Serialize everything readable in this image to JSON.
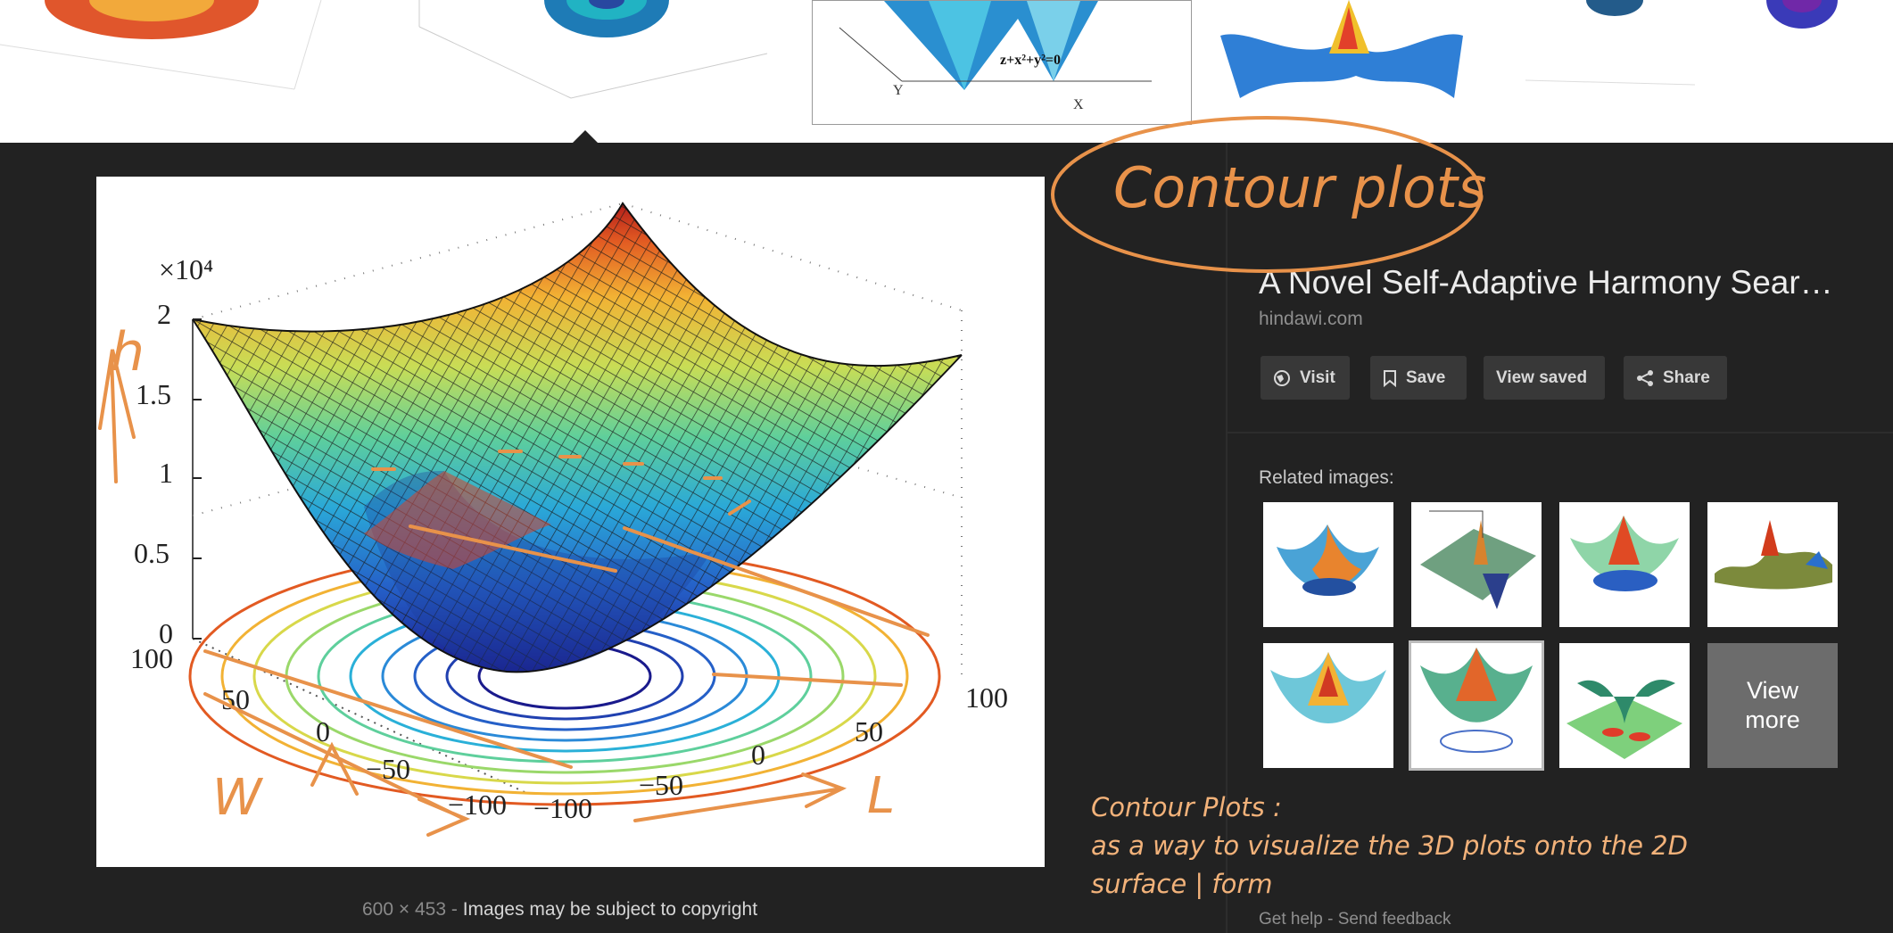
{
  "strip": {
    "thumb3_formula": "z+x²+y²=0",
    "thumb3_axis_y": "Y",
    "thumb3_axis_x": "X"
  },
  "preview": {
    "chart": {
      "exponent_label": "×10⁴",
      "z_ticks": [
        "2",
        "1.5",
        "1",
        "0.5",
        "0"
      ],
      "w_ticks": [
        "100",
        "50",
        "0",
        "−50",
        "−100"
      ],
      "l_ticks": [
        "−100",
        "−50",
        "0",
        "50",
        "100"
      ]
    },
    "dimensions": "600 × 453",
    "separator": "-",
    "copyright": "Images may be subject to copyright"
  },
  "chart_data": {
    "type": "surface",
    "title": "",
    "zlabel_multiplier": "×10⁴",
    "zlim": [
      0,
      2
    ],
    "z_ticks": [
      0,
      0.5,
      1,
      1.5,
      2
    ],
    "w_range": [
      -100,
      100
    ],
    "l_range": [
      -100,
      100
    ],
    "w_ticks": [
      -100,
      -50,
      0,
      50,
      100
    ],
    "l_ticks": [
      -100,
      -50,
      0,
      50,
      100
    ],
    "surface": "paraboloid z = w² + l² (bowl), colormap jet, contour rings projected at z=0",
    "contour_levels": 10
  },
  "result": {
    "title": "A Novel Self-Adaptive Harmony Sear…",
    "domain": "hindawi.com",
    "actions": {
      "visit": "Visit",
      "save": "Save",
      "view_saved": "View saved",
      "share": "Share"
    },
    "related_label": "Related images:",
    "view_more": "View more"
  },
  "footer": {
    "help": "Get help",
    "separator": "-",
    "feedback": "Send feedback"
  },
  "annotations": {
    "circled_heading": "Contour plots",
    "note_title": "Contour Plots :",
    "note_line1": "as a way to visualize the 3D plots onto the 2D",
    "note_line2": "surface | form",
    "axis_h": "h",
    "axis_w": "W",
    "axis_l": "L"
  },
  "colors": {
    "background": "#222222",
    "annotation": "#e8924a",
    "note_text": "#f2b27a"
  }
}
